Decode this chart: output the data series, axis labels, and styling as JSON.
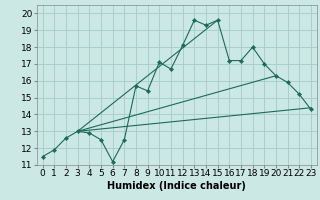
{
  "title": "",
  "xlabel": "Humidex (Indice chaleur)",
  "bg_color": "#cce8e4",
  "grid_color": "#aad0cc",
  "line_color": "#1a6b5a",
  "xlim": [
    -0.5,
    23.5
  ],
  "ylim": [
    11,
    20.5
  ],
  "xticks": [
    0,
    1,
    2,
    3,
    4,
    5,
    6,
    7,
    8,
    9,
    10,
    11,
    12,
    13,
    14,
    15,
    16,
    17,
    18,
    19,
    20,
    21,
    22,
    23
  ],
  "yticks": [
    11,
    12,
    13,
    14,
    15,
    16,
    17,
    18,
    19,
    20
  ],
  "main_x": [
    0,
    1,
    2,
    3,
    4,
    5,
    6,
    7,
    8,
    9,
    10,
    11,
    12,
    13,
    14,
    15,
    16,
    17,
    18,
    19,
    20,
    21,
    22,
    23
  ],
  "main_y": [
    11.5,
    11.9,
    12.6,
    13.0,
    12.9,
    12.5,
    11.2,
    12.5,
    15.7,
    15.4,
    17.1,
    16.7,
    18.1,
    19.6,
    19.3,
    19.6,
    17.2,
    17.2,
    18.0,
    17.0,
    16.3,
    15.9,
    15.2,
    14.3
  ],
  "line2_x": [
    3,
    23
  ],
  "line2_y": [
    13.0,
    14.4
  ],
  "line3_x": [
    3,
    20
  ],
  "line3_y": [
    13.0,
    16.3
  ],
  "line4_x": [
    3,
    15
  ],
  "line4_y": [
    13.0,
    19.6
  ],
  "font_size": 6.5
}
